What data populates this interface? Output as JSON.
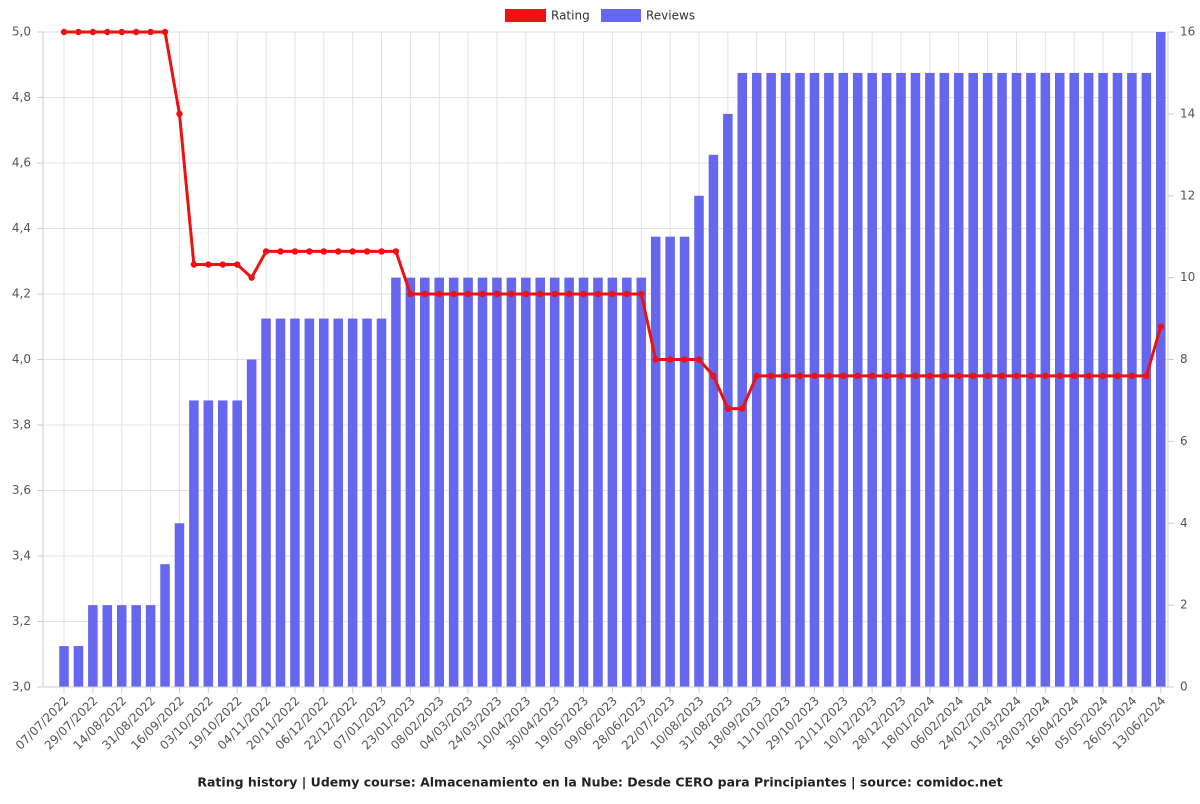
{
  "chart_data": {
    "type": "combo",
    "title": "Rating history | Udemy course: Almacenamiento en la Nube: Desde CERO para Principiantes | source: comidoc.net",
    "categories": [
      "07/07/2022",
      null,
      "29/07/2022",
      null,
      "14/08/2022",
      null,
      "31/08/2022",
      null,
      "16/09/2022",
      null,
      "03/10/2022",
      null,
      "19/10/2022",
      null,
      "04/11/2022",
      null,
      "20/11/2022",
      null,
      "06/12/2022",
      null,
      "22/12/2022",
      null,
      "07/01/2023",
      null,
      "23/01/2023",
      null,
      "08/02/2023",
      null,
      "04/03/2023",
      null,
      "24/03/2023",
      null,
      "10/04/2023",
      null,
      "30/04/2023",
      null,
      "19/05/2023",
      null,
      "09/06/2023",
      null,
      "28/06/2023",
      null,
      "22/07/2023",
      null,
      "10/08/2023",
      null,
      "31/08/2023",
      null,
      "18/09/2023",
      null,
      "11/10/2023",
      null,
      "29/10/2023",
      null,
      "21/11/2023",
      null,
      "10/12/2023",
      null,
      "28/12/2023",
      null,
      "18/01/2024",
      null,
      "06/02/2024",
      null,
      "24/02/2024",
      null,
      "11/03/2024",
      null,
      "28/03/2024",
      null,
      "16/04/2024",
      null,
      "05/05/2024",
      null,
      "26/05/2024",
      null,
      "13/06/2024"
    ],
    "series": [
      {
        "name": "Rating",
        "type": "line",
        "color": "#ee1111",
        "axis": "y",
        "values": [
          5.0,
          5.0,
          5.0,
          5.0,
          5.0,
          5.0,
          5.0,
          5.0,
          4.75,
          4.29,
          4.29,
          4.29,
          4.29,
          4.25,
          4.33,
          4.33,
          4.33,
          4.33,
          4.33,
          4.33,
          4.33,
          4.33,
          4.33,
          4.33,
          4.2,
          4.2,
          4.2,
          4.2,
          4.2,
          4.2,
          4.2,
          4.2,
          4.2,
          4.2,
          4.2,
          4.2,
          4.2,
          4.2,
          4.2,
          4.2,
          4.2,
          4.0,
          4.0,
          4.0,
          4.0,
          3.95,
          3.85,
          3.85,
          3.95,
          3.95,
          3.95,
          3.95,
          3.95,
          3.95,
          3.95,
          3.95,
          3.95,
          3.95,
          3.95,
          3.95,
          3.95,
          3.95,
          3.95,
          3.95,
          3.95,
          3.95,
          3.95,
          3.95,
          3.95,
          3.95,
          3.95,
          3.95,
          3.95,
          3.95,
          3.95,
          3.95,
          4.1
        ]
      },
      {
        "name": "Reviews",
        "type": "bar",
        "color": "#6666ee",
        "axis": "y2",
        "values": [
          1,
          1,
          2,
          2,
          2,
          2,
          2,
          3,
          4,
          7,
          7,
          7,
          7,
          8,
          9,
          9,
          9,
          9,
          9,
          9,
          9,
          9,
          9,
          10,
          10,
          10,
          10,
          10,
          10,
          10,
          10,
          10,
          10,
          10,
          10,
          10,
          10,
          10,
          10,
          10,
          10,
          11,
          11,
          11,
          12,
          13,
          14,
          15,
          15,
          15,
          15,
          15,
          15,
          15,
          15,
          15,
          15,
          15,
          15,
          15,
          15,
          15,
          15,
          15,
          15,
          15,
          15,
          15,
          15,
          15,
          15,
          15,
          15,
          15,
          15,
          15,
          16
        ]
      }
    ],
    "ylim": [
      3.0,
      5.0
    ],
    "yticks": [
      {
        "value": 3.0,
        "label": "3,0"
      },
      {
        "value": 3.2,
        "label": "3,2"
      },
      {
        "value": 3.4,
        "label": "3,4"
      },
      {
        "value": 3.6,
        "label": "3,6"
      },
      {
        "value": 3.8,
        "label": "3,8"
      },
      {
        "value": 4.0,
        "label": "4,0"
      },
      {
        "value": 4.2,
        "label": "4,2"
      },
      {
        "value": 4.4,
        "label": "4,4"
      },
      {
        "value": 4.6,
        "label": "4,6"
      },
      {
        "value": 4.8,
        "label": "4,8"
      },
      {
        "value": 5.0,
        "label": "5,0"
      }
    ],
    "y2lim": [
      0,
      16
    ],
    "y2ticks": [
      0,
      2,
      4,
      6,
      8,
      10,
      12,
      14,
      16
    ],
    "grid": true
  }
}
